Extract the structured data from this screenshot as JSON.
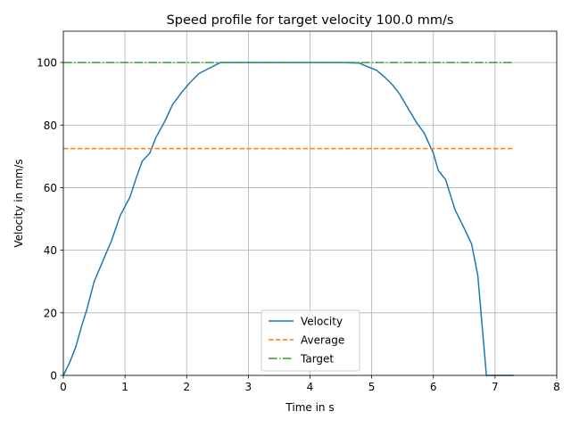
{
  "chart_data": {
    "type": "line",
    "title": "Speed profile for target velocity 100.0 mm/s",
    "xlabel": "Time in s",
    "ylabel": "Velocity in mm/s",
    "xlim": [
      0,
      8
    ],
    "ylim": [
      0,
      110
    ],
    "xticks": [
      0,
      1,
      2,
      3,
      4,
      5,
      6,
      7,
      8
    ],
    "yticks": [
      0,
      20,
      40,
      60,
      80,
      100
    ],
    "grid": true,
    "legend_position": "bottom-center",
    "series": [
      {
        "name": "Velocity",
        "color": "#1f77b4",
        "style": "solid",
        "x": [
          0,
          0.1,
          0.2,
          0.3,
          0.38,
          0.5,
          0.65,
          0.78,
          0.92,
          1.08,
          1.18,
          1.28,
          1.4,
          1.5,
          1.64,
          1.77,
          1.92,
          2.05,
          2.2,
          2.35,
          2.45,
          2.55,
          2.7,
          3.0,
          3.5,
          4.0,
          4.5,
          4.8,
          4.95,
          5.08,
          5.2,
          5.33,
          5.45,
          5.6,
          5.72,
          5.85,
          5.93,
          6.0,
          6.08,
          6.2,
          6.35,
          6.5,
          6.62,
          6.72,
          6.86,
          6.87,
          7.0,
          7.3
        ],
        "y": [
          0,
          4,
          9,
          16,
          21,
          30,
          37,
          43,
          51,
          57,
          63,
          68.5,
          71,
          76,
          81,
          86.5,
          90.5,
          93.5,
          96.5,
          98,
          99,
          100,
          100,
          100,
          100,
          100,
          100,
          99.8,
          98.5,
          97.5,
          95.5,
          93,
          90,
          85,
          81,
          77.5,
          74,
          71,
          65.5,
          62.5,
          53,
          47,
          42,
          32,
          0,
          0,
          0,
          0
        ]
      },
      {
        "name": "Average",
        "color": "#ff7f0e",
        "style": "dashed",
        "x": [
          0,
          7.3
        ],
        "y": [
          72.5,
          72.5
        ]
      },
      {
        "name": "Target",
        "color": "#2ca02c",
        "style": "dashdot",
        "x": [
          0,
          7.3
        ],
        "y": [
          100,
          100
        ]
      }
    ]
  }
}
